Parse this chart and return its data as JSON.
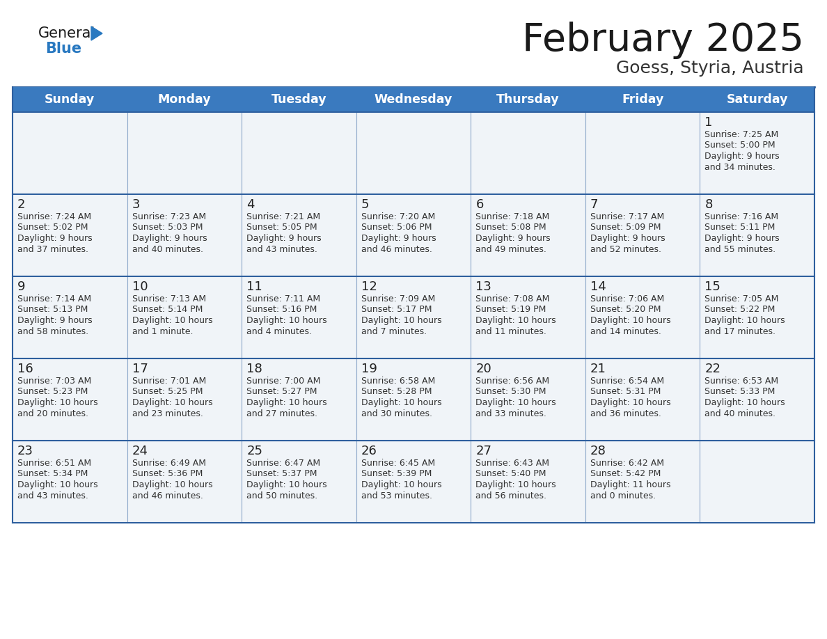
{
  "title": "February 2025",
  "subtitle": "Goess, Styria, Austria",
  "header_color": "#3a7abf",
  "header_text_color": "#ffffff",
  "cell_bg": "#f0f4f8",
  "cell_bg_white": "#ffffff",
  "border_color": "#2e5f9e",
  "day_names": [
    "Sunday",
    "Monday",
    "Tuesday",
    "Wednesday",
    "Thursday",
    "Friday",
    "Saturday"
  ],
  "title_color": "#1a1a1a",
  "subtitle_color": "#333333",
  "day_number_color": "#222222",
  "info_color": "#333333",
  "logo_general_color": "#1a1a1a",
  "logo_blue_color": "#2878c0",
  "calendar": [
    [
      null,
      null,
      null,
      null,
      null,
      null,
      {
        "day": 1,
        "sunrise": "7:25 AM",
        "sunset": "5:00 PM",
        "daylight": "9 hours",
        "daylight2": "and 34 minutes."
      }
    ],
    [
      {
        "day": 2,
        "sunrise": "7:24 AM",
        "sunset": "5:02 PM",
        "daylight": "9 hours",
        "daylight2": "and 37 minutes."
      },
      {
        "day": 3,
        "sunrise": "7:23 AM",
        "sunset": "5:03 PM",
        "daylight": "9 hours",
        "daylight2": "and 40 minutes."
      },
      {
        "day": 4,
        "sunrise": "7:21 AM",
        "sunset": "5:05 PM",
        "daylight": "9 hours",
        "daylight2": "and 43 minutes."
      },
      {
        "day": 5,
        "sunrise": "7:20 AM",
        "sunset": "5:06 PM",
        "daylight": "9 hours",
        "daylight2": "and 46 minutes."
      },
      {
        "day": 6,
        "sunrise": "7:18 AM",
        "sunset": "5:08 PM",
        "daylight": "9 hours",
        "daylight2": "and 49 minutes."
      },
      {
        "day": 7,
        "sunrise": "7:17 AM",
        "sunset": "5:09 PM",
        "daylight": "9 hours",
        "daylight2": "and 52 minutes."
      },
      {
        "day": 8,
        "sunrise": "7:16 AM",
        "sunset": "5:11 PM",
        "daylight": "9 hours",
        "daylight2": "and 55 minutes."
      }
    ],
    [
      {
        "day": 9,
        "sunrise": "7:14 AM",
        "sunset": "5:13 PM",
        "daylight": "9 hours",
        "daylight2": "and 58 minutes."
      },
      {
        "day": 10,
        "sunrise": "7:13 AM",
        "sunset": "5:14 PM",
        "daylight": "10 hours",
        "daylight2": "and 1 minute."
      },
      {
        "day": 11,
        "sunrise": "7:11 AM",
        "sunset": "5:16 PM",
        "daylight": "10 hours",
        "daylight2": "and 4 minutes."
      },
      {
        "day": 12,
        "sunrise": "7:09 AM",
        "sunset": "5:17 PM",
        "daylight": "10 hours",
        "daylight2": "and 7 minutes."
      },
      {
        "day": 13,
        "sunrise": "7:08 AM",
        "sunset": "5:19 PM",
        "daylight": "10 hours",
        "daylight2": "and 11 minutes."
      },
      {
        "day": 14,
        "sunrise": "7:06 AM",
        "sunset": "5:20 PM",
        "daylight": "10 hours",
        "daylight2": "and 14 minutes."
      },
      {
        "day": 15,
        "sunrise": "7:05 AM",
        "sunset": "5:22 PM",
        "daylight": "10 hours",
        "daylight2": "and 17 minutes."
      }
    ],
    [
      {
        "day": 16,
        "sunrise": "7:03 AM",
        "sunset": "5:23 PM",
        "daylight": "10 hours",
        "daylight2": "and 20 minutes."
      },
      {
        "day": 17,
        "sunrise": "7:01 AM",
        "sunset": "5:25 PM",
        "daylight": "10 hours",
        "daylight2": "and 23 minutes."
      },
      {
        "day": 18,
        "sunrise": "7:00 AM",
        "sunset": "5:27 PM",
        "daylight": "10 hours",
        "daylight2": "and 27 minutes."
      },
      {
        "day": 19,
        "sunrise": "6:58 AM",
        "sunset": "5:28 PM",
        "daylight": "10 hours",
        "daylight2": "and 30 minutes."
      },
      {
        "day": 20,
        "sunrise": "6:56 AM",
        "sunset": "5:30 PM",
        "daylight": "10 hours",
        "daylight2": "and 33 minutes."
      },
      {
        "day": 21,
        "sunrise": "6:54 AM",
        "sunset": "5:31 PM",
        "daylight": "10 hours",
        "daylight2": "and 36 minutes."
      },
      {
        "day": 22,
        "sunrise": "6:53 AM",
        "sunset": "5:33 PM",
        "daylight": "10 hours",
        "daylight2": "and 40 minutes."
      }
    ],
    [
      {
        "day": 23,
        "sunrise": "6:51 AM",
        "sunset": "5:34 PM",
        "daylight": "10 hours",
        "daylight2": "and 43 minutes."
      },
      {
        "day": 24,
        "sunrise": "6:49 AM",
        "sunset": "5:36 PM",
        "daylight": "10 hours",
        "daylight2": "and 46 minutes."
      },
      {
        "day": 25,
        "sunrise": "6:47 AM",
        "sunset": "5:37 PM",
        "daylight": "10 hours",
        "daylight2": "and 50 minutes."
      },
      {
        "day": 26,
        "sunrise": "6:45 AM",
        "sunset": "5:39 PM",
        "daylight": "10 hours",
        "daylight2": "and 53 minutes."
      },
      {
        "day": 27,
        "sunrise": "6:43 AM",
        "sunset": "5:40 PM",
        "daylight": "10 hours",
        "daylight2": "and 56 minutes."
      },
      {
        "day": 28,
        "sunrise": "6:42 AM",
        "sunset": "5:42 PM",
        "daylight": "11 hours",
        "daylight2": "and 0 minutes."
      },
      null
    ]
  ]
}
